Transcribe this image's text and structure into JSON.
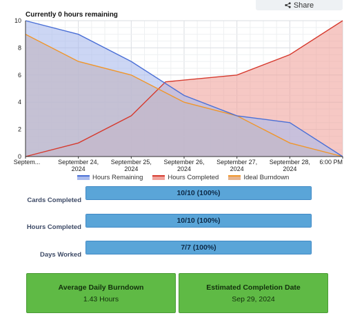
{
  "share": {
    "label": "Share",
    "icon": "share-icon"
  },
  "chart_data": {
    "type": "area",
    "title": "Currently 0 hours remaining",
    "x": [
      "Septem...",
      "September 24, 2024",
      "September 25, 2024",
      "September 26, 2024",
      "September 27, 2024",
      "September 28, 2024",
      "6:00 PM"
    ],
    "x_ticks": [
      [
        "Septem..."
      ],
      [
        "September 24,",
        "2024"
      ],
      [
        "September 25,",
        "2024"
      ],
      [
        "September 26,",
        "2024"
      ],
      [
        "September 27,",
        "2024"
      ],
      [
        "September 28,",
        "2024"
      ],
      [
        "6:00 PM"
      ]
    ],
    "ylim": [
      0,
      10
    ],
    "y_ticks": [
      0,
      2,
      4,
      6,
      8,
      10
    ],
    "grid": true,
    "legend_position": "bottom",
    "series": [
      {
        "name": "Hours Remaining",
        "color": "#4a6fd6",
        "fill": "#aabbed",
        "points": [
          [
            0,
            10
          ],
          [
            1,
            9
          ],
          [
            2,
            7
          ],
          [
            3,
            4.5
          ],
          [
            4,
            3
          ],
          [
            5,
            2.5
          ],
          [
            6,
            0
          ]
        ]
      },
      {
        "name": "Hours Completed",
        "color": "#d63a2e",
        "fill": "#f0a39c",
        "points": [
          [
            0,
            0
          ],
          [
            1,
            1
          ],
          [
            2,
            3
          ],
          [
            2.65,
            5.5
          ],
          [
            4,
            6
          ],
          [
            5,
            7.5
          ],
          [
            6,
            10
          ]
        ]
      },
      {
        "name": "Ideal Burndown",
        "color": "#f0962a",
        "fill": "#e6b48e",
        "points": [
          [
            0,
            9
          ],
          [
            1,
            7
          ],
          [
            2,
            6
          ],
          [
            3,
            4
          ],
          [
            4,
            3
          ],
          [
            5,
            1
          ],
          [
            6,
            0
          ]
        ]
      }
    ]
  },
  "stats": [
    {
      "label": "Cards Completed",
      "value": "10/10 (100%)",
      "fraction": 1.0
    },
    {
      "label": "Hours Completed",
      "value": "10/10 (100%)",
      "fraction": 1.0
    },
    {
      "label": "Days Worked",
      "value": "7/7 (100%)",
      "fraction": 1.0
    }
  ],
  "cards": [
    {
      "title": "Average Daily Burndown",
      "value": "1.43 Hours"
    },
    {
      "title": "Estimated Completion Date",
      "value": "Sep 29, 2024"
    }
  ]
}
